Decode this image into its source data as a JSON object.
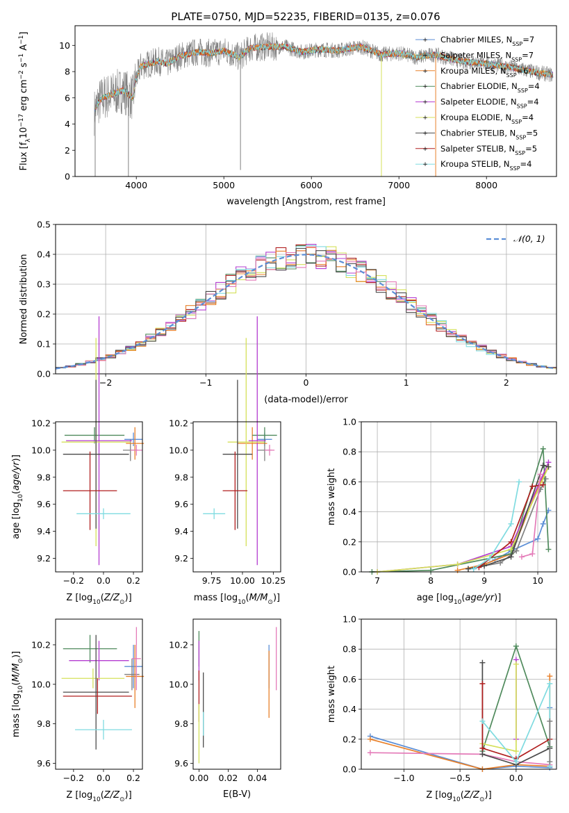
{
  "figure_title": "PLATE=0750, MJD=52235, FIBERID=0135, z=0.076",
  "colors": {
    "chabrier_miles": "#5b8ed6",
    "salpeter_miles": "#808080",
    "kroupa_miles": "#e8802a",
    "chabrier_elodie": "#4f8a5c",
    "salpeter_elodie": "#b43cd0",
    "kroupa_elodie": "#d4e05a",
    "chabrier_stelib": "#4a4a4a",
    "salpeter_stelib": "#b01e1e",
    "kroupa_stelib": "#7fdbe0",
    "extra_pink": "#e47ab8",
    "normal_curve": "#5b8ed6",
    "grid": "#b0b0b0"
  },
  "chart_data": [
    {
      "id": "spectrum",
      "type": "line",
      "xlabel": "wavelength [Angstrom, rest frame]",
      "ylabel": "Flux [f_λ10^-17 erg cm^-2 s^-1 A^-1]",
      "xlim": [
        3300,
        8800
      ],
      "ylim": [
        0,
        11.5
      ],
      "xticks": [
        4000,
        5000,
        6000,
        7000,
        8000
      ],
      "yticks": [
        0,
        2,
        4,
        6,
        8,
        10
      ],
      "grid": false,
      "legend_position": "right",
      "legend": [
        {
          "label": "Chabrier MILES, N",
          "sub": "SSP",
          "suffix": "=7",
          "color_key": "chabrier_miles"
        },
        {
          "label": "Salpeter MILES, N",
          "sub": "SSP",
          "suffix": "=7",
          "color_key": "salpeter_miles"
        },
        {
          "label": "Kroupa MILES, N",
          "sub": "SSP",
          "suffix": "=6",
          "color_key": "kroupa_miles"
        },
        {
          "label": "Chabrier ELODIE, N",
          "sub": "SSP",
          "suffix": "=4",
          "color_key": "chabrier_elodie"
        },
        {
          "label": "Salpeter ELODIE, N",
          "sub": "SSP",
          "suffix": "=4",
          "color_key": "salpeter_elodie"
        },
        {
          "label": "Kroupa ELODIE, N",
          "sub": "SSP",
          "suffix": "=4",
          "color_key": "kroupa_elodie"
        },
        {
          "label": "Chabrier STELIB, N",
          "sub": "SSP",
          "suffix": "=5",
          "color_key": "chabrier_stelib"
        },
        {
          "label": "Salpeter STELIB, N",
          "sub": "SSP",
          "suffix": "=5",
          "color_key": "salpeter_stelib"
        },
        {
          "label": "Kroupa STELIB, N",
          "sub": "SSP",
          "suffix": "=4",
          "color_key": "kroupa_stelib"
        }
      ],
      "continuum_nodes": [
        [
          3520,
          4.9
        ],
        [
          3560,
          5.6
        ],
        [
          3620,
          6.0
        ],
        [
          3700,
          6.2
        ],
        [
          3780,
          6.4
        ],
        [
          3850,
          6.6
        ],
        [
          3920,
          6.2
        ],
        [
          3960,
          6.0
        ],
        [
          3990,
          7.3
        ],
        [
          4050,
          8.4
        ],
        [
          4150,
          8.6
        ],
        [
          4250,
          8.8
        ],
        [
          4350,
          8.6
        ],
        [
          4500,
          9.2
        ],
        [
          4700,
          9.5
        ],
        [
          4860,
          9.4
        ],
        [
          5000,
          9.6
        ],
        [
          5180,
          9.1
        ],
        [
          5300,
          9.8
        ],
        [
          5500,
          9.9
        ],
        [
          5700,
          9.9
        ],
        [
          5890,
          9.5
        ],
        [
          6100,
          9.7
        ],
        [
          6300,
          9.6
        ],
        [
          6563,
          9.9
        ],
        [
          6800,
          9.3
        ],
        [
          7000,
          9.4
        ],
        [
          7200,
          9.1
        ],
        [
          7400,
          9.3
        ],
        [
          7700,
          8.8
        ],
        [
          8000,
          8.6
        ],
        [
          8300,
          8.3
        ],
        [
          8600,
          7.9
        ],
        [
          8800,
          7.7
        ]
      ]
    },
    {
      "id": "residuals",
      "type": "line",
      "xlabel": "(data-model)/error",
      "ylabel": "Normed distribution",
      "xlim": [
        -2.5,
        2.5
      ],
      "ylim": [
        0,
        0.5
      ],
      "xticks": [
        -2,
        -1,
        0,
        1,
        2
      ],
      "yticks": [
        0.0,
        0.1,
        0.2,
        0.3,
        0.4,
        0.5
      ],
      "grid": true,
      "legend_position": "top-right",
      "series": [
        {
          "name": "𝒩(0, 1)",
          "kind": "normal",
          "mean": 0,
          "sigma": 1
        }
      ],
      "histogram_bin_width": 0.1
    },
    {
      "id": "age_vs_Z",
      "type": "scatter",
      "xlabel": "Z [log10(Z/Z⊙)]",
      "ylabel": "age [log10(age/yr)]",
      "xlim": [
        -0.32,
        0.26
      ],
      "ylim": [
        9.1,
        10.21
      ],
      "xticks": [
        -0.2,
        0.0,
        0.2
      ],
      "yticks": [
        9.2,
        9.4,
        9.6,
        9.8,
        10.0,
        10.2
      ],
      "points": [
        {
          "color_key": "chabrier_miles",
          "x": 0.2,
          "y": 10.08,
          "xerr": 0.06,
          "yerr": 0.05
        },
        {
          "color_key": "salpeter_miles",
          "x": 0.18,
          "y": 10.0,
          "xerr": 0.05,
          "yerr": 0.08
        },
        {
          "color_key": "kroupa_miles",
          "x": 0.21,
          "y": 10.05,
          "xerr": 0.06,
          "yerr": 0.12
        },
        {
          "color_key": "chabrier_elodie",
          "x": -0.06,
          "y": 10.11,
          "xerr": 0.2,
          "yerr": 0.06
        },
        {
          "color_key": "salpeter_elodie",
          "x": -0.03,
          "y": 10.07,
          "xerr": 0.22,
          "yerr": 0.92
        },
        {
          "color_key": "kroupa_elodie",
          "x": -0.05,
          "y": 10.06,
          "xerr": 0.23,
          "yerr": 0.77
        },
        {
          "color_key": "chabrier_stelib",
          "x": -0.05,
          "y": 9.97,
          "xerr": 0.22,
          "yerr": 0.55
        },
        {
          "color_key": "salpeter_stelib",
          "x": -0.09,
          "y": 9.7,
          "xerr": 0.18,
          "yerr": 0.29
        },
        {
          "color_key": "kroupa_stelib",
          "x": 0.0,
          "y": 9.53,
          "xerr": 0.18,
          "yerr": 0.04
        },
        {
          "color_key": "extra_pink",
          "x": 0.22,
          "y": 10.0,
          "xerr": 0.04,
          "yerr": 0.04
        }
      ]
    },
    {
      "id": "age_vs_mass",
      "type": "scatter",
      "xlabel": "mass [log10(M/M⊙)]",
      "ylabel": "",
      "xlim": [
        9.6,
        10.31
      ],
      "ylim": [
        9.1,
        10.21
      ],
      "xticks": [
        9.75,
        10.0,
        10.25
      ],
      "yticks": [
        9.2,
        9.4,
        9.6,
        9.8,
        10.0,
        10.2
      ],
      "points": [
        {
          "color_key": "chabrier_miles",
          "x": 10.18,
          "y": 10.08,
          "xerr": 0.06,
          "yerr": 0.05
        },
        {
          "color_key": "salpeter_miles",
          "x": 10.18,
          "y": 10.0,
          "xerr": 0.06,
          "yerr": 0.08
        },
        {
          "color_key": "kroupa_miles",
          "x": 10.08,
          "y": 10.05,
          "xerr": 0.12,
          "yerr": 0.12
        },
        {
          "color_key": "chabrier_elodie",
          "x": 10.18,
          "y": 10.11,
          "xerr": 0.1,
          "yerr": 0.06
        },
        {
          "color_key": "salpeter_elodie",
          "x": 10.12,
          "y": 10.07,
          "xerr": 0.07,
          "yerr": 0.92
        },
        {
          "color_key": "kroupa_elodie",
          "x": 10.03,
          "y": 10.06,
          "xerr": 0.15,
          "yerr": 0.77
        },
        {
          "color_key": "chabrier_stelib",
          "x": 9.96,
          "y": 9.97,
          "xerr": 0.12,
          "yerr": 0.55
        },
        {
          "color_key": "salpeter_stelib",
          "x": 9.94,
          "y": 9.7,
          "xerr": 0.1,
          "yerr": 0.29
        },
        {
          "color_key": "kroupa_stelib",
          "x": 9.77,
          "y": 9.53,
          "xerr": 0.09,
          "yerr": 0.04
        },
        {
          "color_key": "extra_pink",
          "x": 10.22,
          "y": 10.0,
          "xerr": 0.04,
          "yerr": 0.04
        }
      ]
    },
    {
      "id": "massweight_vs_age",
      "type": "line",
      "xlabel": "age [log10(age/yr)]",
      "ylabel": "mass weight",
      "xlim": [
        6.7,
        10.35
      ],
      "ylim": [
        0,
        1
      ],
      "xticks": [
        7,
        8,
        9,
        10
      ],
      "yticks": [
        0.0,
        0.2,
        0.4,
        0.6,
        0.8,
        1.0
      ],
      "grid": true,
      "series": [
        {
          "color_key": "chabrier_miles",
          "x": [
            8.8,
            9.2,
            9.5,
            10.0,
            10.1,
            10.2
          ],
          "y": [
            0.02,
            0.08,
            0.14,
            0.22,
            0.32,
            0.41
          ]
        },
        {
          "color_key": "salpeter_miles",
          "x": [
            8.7,
            9.3,
            9.6,
            10.05,
            10.15
          ],
          "y": [
            0.02,
            0.06,
            0.14,
            0.55,
            0.62
          ]
        },
        {
          "color_key": "kroupa_miles",
          "x": [
            8.5,
            9.0,
            9.5,
            10.05,
            10.2
          ],
          "y": [
            0.01,
            0.05,
            0.12,
            0.6,
            0.7
          ]
        },
        {
          "color_key": "chabrier_elodie",
          "x": [
            6.9,
            8.0,
            9.5,
            10.1,
            10.2
          ],
          "y": [
            0.0,
            0.01,
            0.12,
            0.82,
            0.15
          ]
        },
        {
          "color_key": "salpeter_elodie",
          "x": [
            7.0,
            8.5,
            9.5,
            10.2
          ],
          "y": [
            0.0,
            0.05,
            0.17,
            0.73
          ]
        },
        {
          "color_key": "kroupa_elodie",
          "x": [
            7.0,
            8.5,
            9.5,
            10.2
          ],
          "y": [
            0.0,
            0.05,
            0.15,
            0.7
          ]
        },
        {
          "color_key": "chabrier_stelib",
          "x": [
            8.7,
            9.0,
            9.5,
            10.1,
            10.2
          ],
          "y": [
            0.02,
            0.04,
            0.1,
            0.71,
            0.7
          ]
        },
        {
          "color_key": "salpeter_stelib",
          "x": [
            8.9,
            9.5,
            9.9,
            10.1
          ],
          "y": [
            0.03,
            0.2,
            0.57,
            0.58
          ]
        },
        {
          "color_key": "kroupa_stelib",
          "x": [
            8.8,
            9.1,
            9.5,
            9.65
          ],
          "y": [
            0.02,
            0.09,
            0.32,
            0.6
          ]
        },
        {
          "color_key": "extra_pink",
          "x": [
            9.7,
            9.9,
            10.05
          ],
          "y": [
            0.1,
            0.12,
            0.65
          ]
        }
      ]
    },
    {
      "id": "mass_vs_Z",
      "type": "scatter",
      "xlabel": "Z [log10(Z/Z⊙)]",
      "ylabel": "mass [log10(M/M⊙)]",
      "xlim": [
        -0.32,
        0.26
      ],
      "ylim": [
        9.57,
        10.33
      ],
      "xticks": [
        -0.2,
        0.0,
        0.2
      ],
      "yticks": [
        9.6,
        9.8,
        10.0,
        10.2
      ],
      "points": [
        {
          "color_key": "chabrier_miles",
          "x": 0.2,
          "y": 10.09,
          "xerr": 0.06,
          "yerr": 0.11
        },
        {
          "color_key": "salpeter_miles",
          "x": 0.19,
          "y": 10.05,
          "xerr": 0.05,
          "yerr": 0.08
        },
        {
          "color_key": "kroupa_miles",
          "x": 0.21,
          "y": 10.04,
          "xerr": 0.06,
          "yerr": 0.16
        },
        {
          "color_key": "chabrier_elodie",
          "x": -0.09,
          "y": 10.18,
          "xerr": 0.18,
          "yerr": 0.07
        },
        {
          "color_key": "salpeter_elodie",
          "x": -0.03,
          "y": 10.12,
          "xerr": 0.2,
          "yerr": 0.1
        },
        {
          "color_key": "kroupa_elodie",
          "x": -0.07,
          "y": 10.03,
          "xerr": 0.21,
          "yerr": 0.05
        },
        {
          "color_key": "chabrier_stelib",
          "x": -0.05,
          "y": 9.96,
          "xerr": 0.22,
          "yerr": 0.29
        },
        {
          "color_key": "salpeter_stelib",
          "x": -0.04,
          "y": 9.94,
          "xerr": 0.23,
          "yerr": 0.09
        },
        {
          "color_key": "kroupa_stelib",
          "x": 0.0,
          "y": 9.77,
          "xerr": 0.19,
          "yerr": 0.05
        },
        {
          "color_key": "extra_pink",
          "x": 0.22,
          "y": 10.13,
          "xerr": 0.03,
          "yerr": 0.16
        }
      ]
    },
    {
      "id": "mass_vs_ebv",
      "type": "scatter",
      "xlabel": "E(B-V)",
      "ylabel": "",
      "xlim": [
        -0.004,
        0.056
      ],
      "ylim": [
        9.57,
        10.33
      ],
      "xticks": [
        0.0,
        0.02,
        0.04
      ],
      "yticks": [
        9.6,
        9.8,
        10.0,
        10.2
      ],
      "points": [
        {
          "color_key": "chabrier_miles",
          "x": 0.048,
          "y": 10.09,
          "xerr": 0,
          "yerr": 0.11
        },
        {
          "color_key": "kroupa_miles",
          "x": 0.048,
          "y": 10.0,
          "xerr": 0,
          "yerr": 0.17
        },
        {
          "color_key": "extra_pink",
          "x": 0.053,
          "y": 10.13,
          "xerr": 0,
          "yerr": 0.16
        },
        {
          "color_key": "chabrier_elodie",
          "x": 0.0,
          "y": 10.18,
          "xerr": 0,
          "yerr": 0.09
        },
        {
          "color_key": "salpeter_elodie",
          "x": 0.0,
          "y": 10.12,
          "xerr": 0,
          "yerr": 0.1
        },
        {
          "color_key": "salpeter_stelib",
          "x": 0.0,
          "y": 9.94,
          "xerr": 0,
          "yerr": 0.13
        },
        {
          "color_key": "kroupa_elodie",
          "x": 0.0,
          "y": 9.75,
          "xerr": 0,
          "yerr": 0.15
        },
        {
          "color_key": "chabrier_stelib",
          "x": 0.003,
          "y": 9.87,
          "xerr": 0,
          "yerr": 0.19
        },
        {
          "color_key": "kroupa_stelib",
          "x": 0.003,
          "y": 9.8,
          "xerr": 0,
          "yerr": 0.06
        }
      ]
    },
    {
      "id": "massweight_vs_Z",
      "type": "line",
      "xlabel": "Z [log10(Z/Z⊙)]",
      "ylabel": "mass weight",
      "xlim": [
        -1.38,
        0.36
      ],
      "ylim": [
        0,
        1
      ],
      "xticks": [
        -1.0,
        -0.5,
        0.0
      ],
      "yticks": [
        0.0,
        0.2,
        0.4,
        0.6,
        0.8,
        1.0
      ],
      "grid": true,
      "series": [
        {
          "color_key": "chabrier_miles",
          "x": [
            -1.3,
            -0.3,
            0.0,
            0.3,
            0.3
          ],
          "y": [
            0.22,
            0.0,
            0.02,
            0.01,
            0.41
          ]
        },
        {
          "color_key": "kroupa_miles",
          "x": [
            -1.3,
            -0.3,
            0.0,
            0.3,
            0.3
          ],
          "y": [
            0.2,
            0.0,
            0.03,
            0.02,
            0.62
          ]
        },
        {
          "color_key": "extra_pink",
          "x": [
            -1.3,
            -0.3,
            0.0,
            0.3
          ],
          "y": [
            0.11,
            0.1,
            0.05,
            0.03
          ]
        },
        {
          "color_key": "chabrier_elodie",
          "x": [
            -0.3,
            0.0,
            0.3
          ],
          "y": [
            0.12,
            0.82,
            0.15
          ]
        },
        {
          "color_key": "salpeter_elodie",
          "x": [
            0.0,
            0.0
          ],
          "y": [
            0.73,
            0.2
          ]
        },
        {
          "color_key": "kroupa_elodie",
          "x": [
            -0.3,
            0.0,
            0.0
          ],
          "y": [
            0.17,
            0.12,
            0.7
          ]
        },
        {
          "color_key": "chabrier_stelib",
          "x": [
            -0.3,
            -0.3,
            0.0,
            0.3
          ],
          "y": [
            0.71,
            0.1,
            0.03,
            0.14
          ]
        },
        {
          "color_key": "salpeter_stelib",
          "x": [
            -0.3,
            -0.3,
            0.0,
            0.3
          ],
          "y": [
            0.57,
            0.14,
            0.07,
            0.2
          ]
        },
        {
          "color_key": "kroupa_stelib",
          "x": [
            -0.3,
            0.0,
            0.3,
            0.3
          ],
          "y": [
            0.32,
            0.05,
            0.57,
            0.02
          ]
        },
        {
          "color_key": "salpeter_miles",
          "x": [
            0.3,
            0.3
          ],
          "y": [
            0.32,
            0.05
          ]
        }
      ]
    }
  ]
}
